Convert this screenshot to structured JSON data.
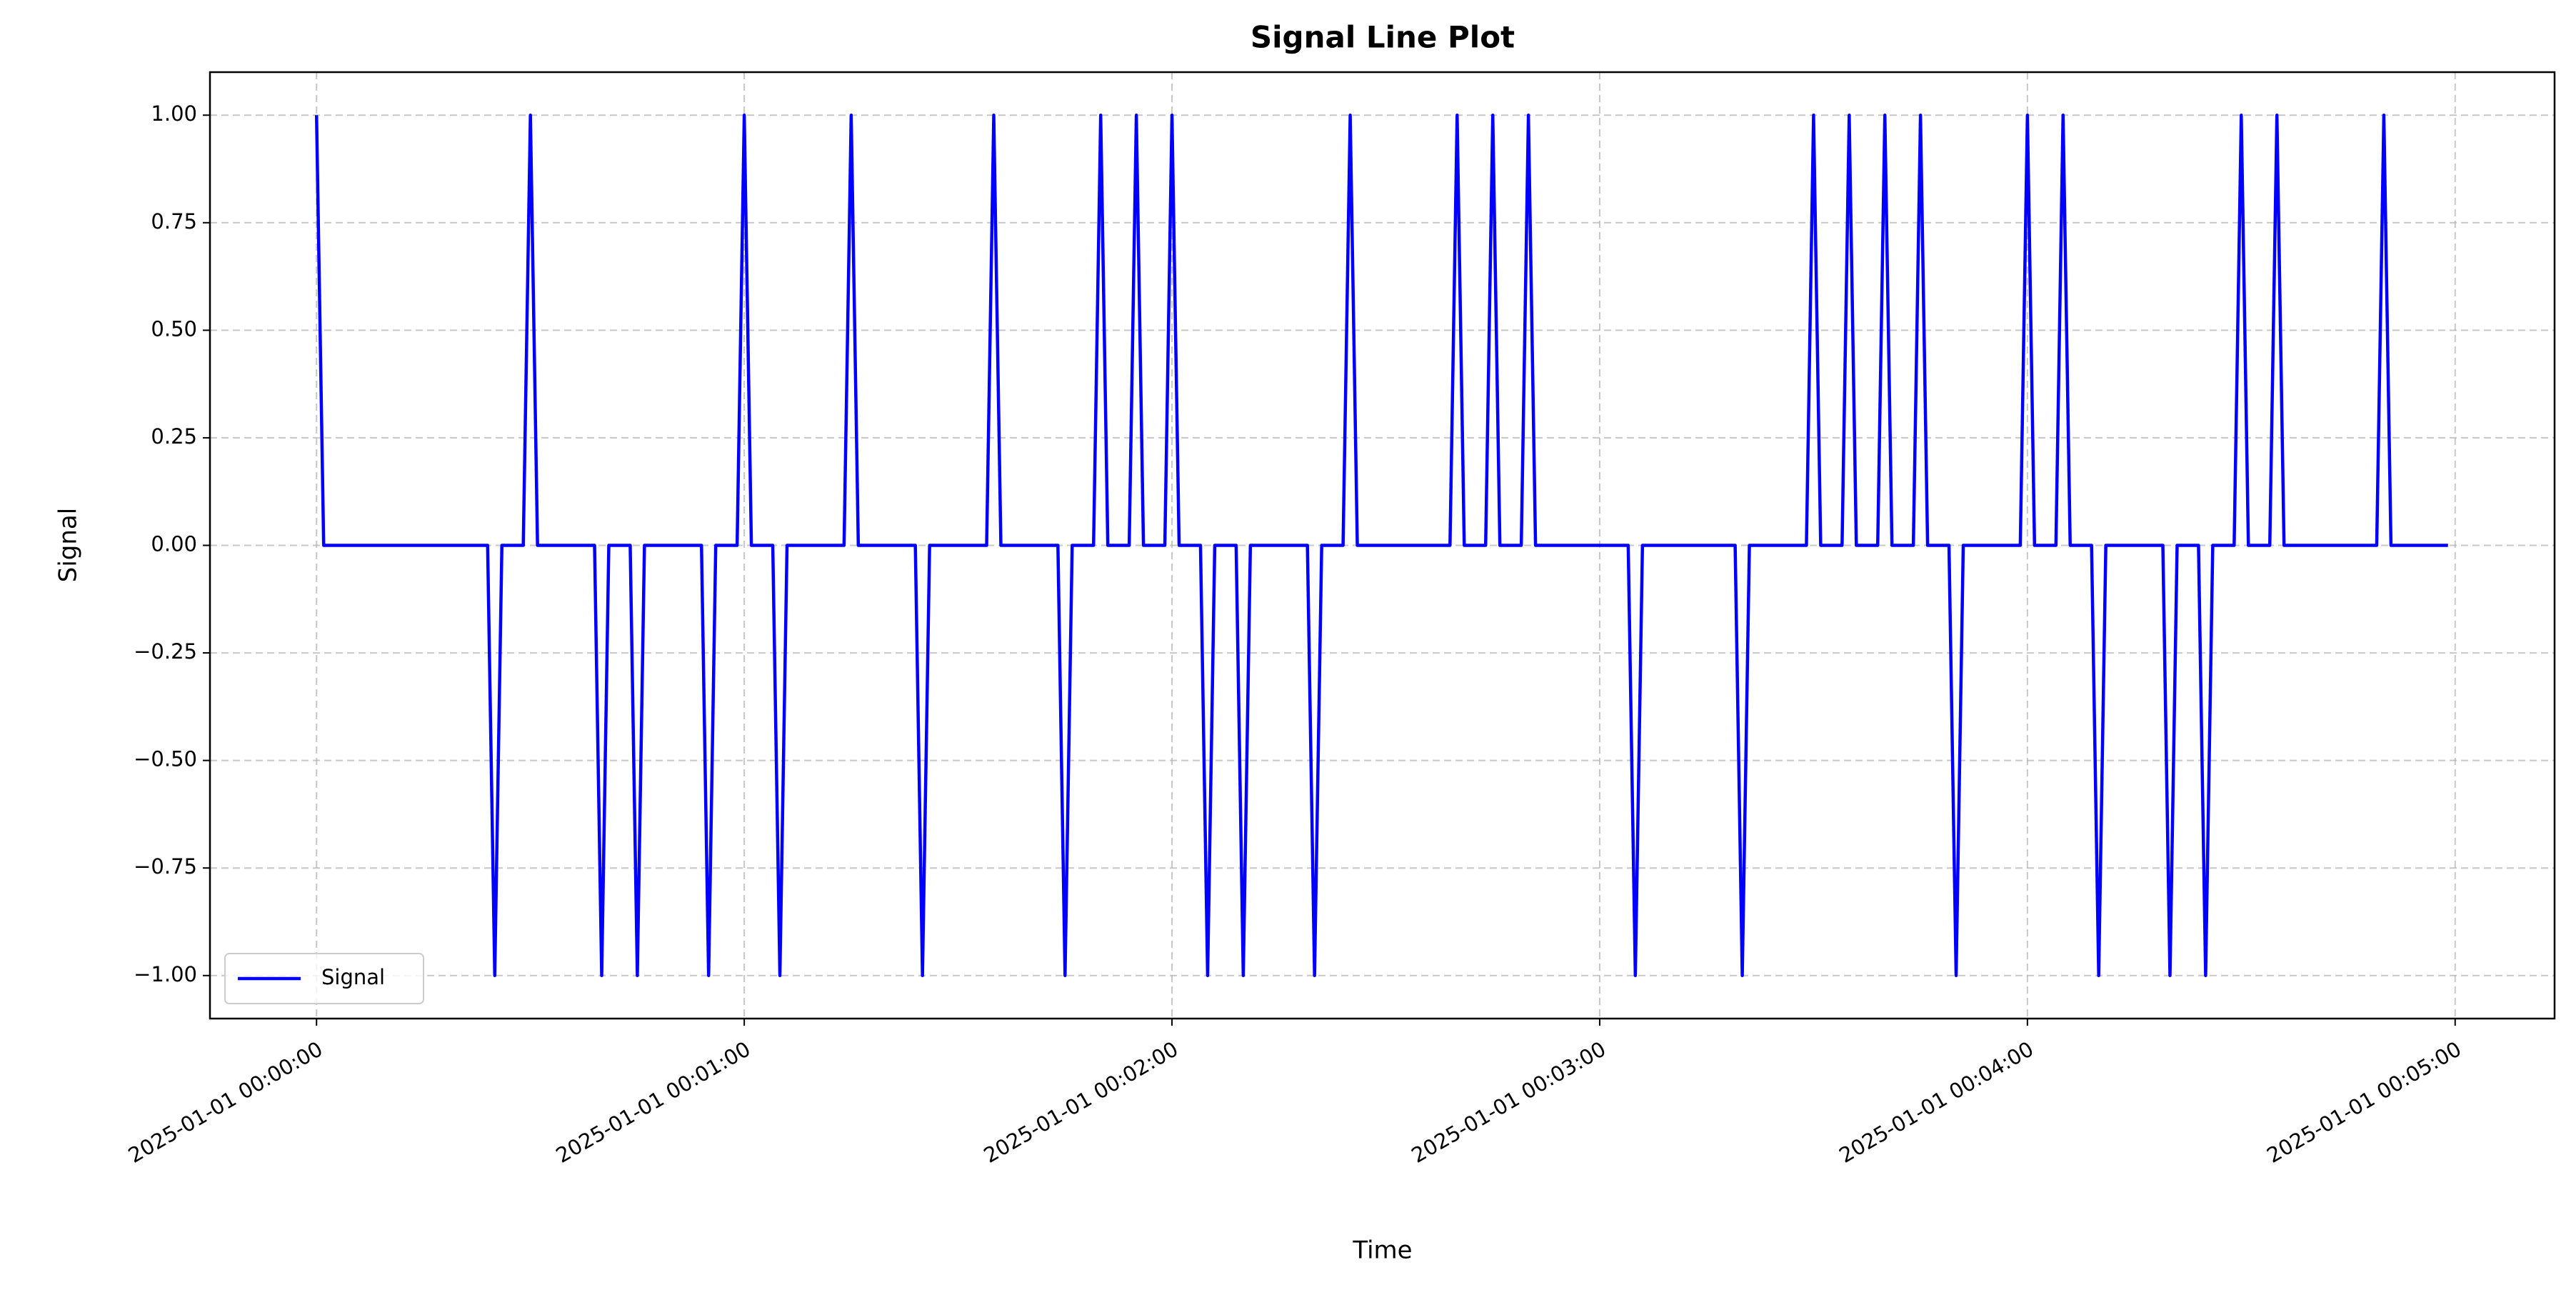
{
  "chart_data": {
    "type": "line",
    "title": "Signal Line Plot",
    "x_label": "Time",
    "y_label": "Signal",
    "x": [
      "2025-01-01 00:00:00",
      "2025-01-01 00:00:01",
      "2025-01-01 00:00:02",
      "2025-01-01 00:00:03",
      "2025-01-01 00:00:04",
      "2025-01-01 00:00:05",
      "2025-01-01 00:00:06",
      "2025-01-01 00:00:07",
      "2025-01-01 00:00:08",
      "2025-01-01 00:00:09",
      "2025-01-01 00:00:10",
      "2025-01-01 00:00:11",
      "2025-01-01 00:00:12",
      "2025-01-01 00:00:13",
      "2025-01-01 00:00:14",
      "2025-01-01 00:00:15",
      "2025-01-01 00:00:16",
      "2025-01-01 00:00:17",
      "2025-01-01 00:00:18",
      "2025-01-01 00:00:19",
      "2025-01-01 00:00:20",
      "2025-01-01 00:00:21",
      "2025-01-01 00:00:22",
      "2025-01-01 00:00:23",
      "2025-01-01 00:00:24",
      "2025-01-01 00:00:25",
      "2025-01-01 00:00:26",
      "2025-01-01 00:00:27",
      "2025-01-01 00:00:28",
      "2025-01-01 00:00:29",
      "2025-01-01 00:00:30",
      "2025-01-01 00:00:31",
      "2025-01-01 00:00:32",
      "2025-01-01 00:00:33",
      "2025-01-01 00:00:34",
      "2025-01-01 00:00:35",
      "2025-01-01 00:00:36",
      "2025-01-01 00:00:37",
      "2025-01-01 00:00:38",
      "2025-01-01 00:00:39",
      "2025-01-01 00:00:40",
      "2025-01-01 00:00:41",
      "2025-01-01 00:00:42",
      "2025-01-01 00:00:43",
      "2025-01-01 00:00:44",
      "2025-01-01 00:00:45",
      "2025-01-01 00:00:46",
      "2025-01-01 00:00:47",
      "2025-01-01 00:00:48",
      "2025-01-01 00:00:49",
      "2025-01-01 00:00:50",
      "2025-01-01 00:00:51",
      "2025-01-01 00:00:52",
      "2025-01-01 00:00:53",
      "2025-01-01 00:00:54",
      "2025-01-01 00:00:55",
      "2025-01-01 00:00:56",
      "2025-01-01 00:00:57",
      "2025-01-01 00:00:58",
      "2025-01-01 00:00:59",
      "2025-01-01 00:01:00",
      "2025-01-01 00:01:01",
      "2025-01-01 00:01:02",
      "2025-01-01 00:01:03",
      "2025-01-01 00:01:04",
      "2025-01-01 00:01:05",
      "2025-01-01 00:01:06",
      "2025-01-01 00:01:07",
      "2025-01-01 00:01:08",
      "2025-01-01 00:01:09",
      "2025-01-01 00:01:10",
      "2025-01-01 00:01:11",
      "2025-01-01 00:01:12",
      "2025-01-01 00:01:13",
      "2025-01-01 00:01:14",
      "2025-01-01 00:01:15",
      "2025-01-01 00:01:16",
      "2025-01-01 00:01:17",
      "2025-01-01 00:01:18",
      "2025-01-01 00:01:19",
      "2025-01-01 00:01:20",
      "2025-01-01 00:01:21",
      "2025-01-01 00:01:22",
      "2025-01-01 00:01:23",
      "2025-01-01 00:01:24",
      "2025-01-01 00:01:25",
      "2025-01-01 00:01:26",
      "2025-01-01 00:01:27",
      "2025-01-01 00:01:28",
      "2025-01-01 00:01:29",
      "2025-01-01 00:01:30",
      "2025-01-01 00:01:31",
      "2025-01-01 00:01:32",
      "2025-01-01 00:01:33",
      "2025-01-01 00:01:34",
      "2025-01-01 00:01:35",
      "2025-01-01 00:01:36",
      "2025-01-01 00:01:37",
      "2025-01-01 00:01:38",
      "2025-01-01 00:01:39",
      "2025-01-01 00:01:40",
      "2025-01-01 00:01:41",
      "2025-01-01 00:01:42",
      "2025-01-01 00:01:43",
      "2025-01-01 00:01:44",
      "2025-01-01 00:01:45",
      "2025-01-01 00:01:46",
      "2025-01-01 00:01:47",
      "2025-01-01 00:01:48",
      "2025-01-01 00:01:49",
      "2025-01-01 00:01:50",
      "2025-01-01 00:01:51",
      "2025-01-01 00:01:52",
      "2025-01-01 00:01:53",
      "2025-01-01 00:01:54",
      "2025-01-01 00:01:55",
      "2025-01-01 00:01:56",
      "2025-01-01 00:01:57",
      "2025-01-01 00:01:58",
      "2025-01-01 00:01:59",
      "2025-01-01 00:02:00",
      "2025-01-01 00:02:01",
      "2025-01-01 00:02:02",
      "2025-01-01 00:02:03",
      "2025-01-01 00:02:04",
      "2025-01-01 00:02:05",
      "2025-01-01 00:02:06",
      "2025-01-01 00:02:07",
      "2025-01-01 00:02:08",
      "2025-01-01 00:02:09",
      "2025-01-01 00:02:10",
      "2025-01-01 00:02:11",
      "2025-01-01 00:02:12",
      "2025-01-01 00:02:13",
      "2025-01-01 00:02:14",
      "2025-01-01 00:02:15",
      "2025-01-01 00:02:16",
      "2025-01-01 00:02:17",
      "2025-01-01 00:02:18",
      "2025-01-01 00:02:19",
      "2025-01-01 00:02:20",
      "2025-01-01 00:02:21",
      "2025-01-01 00:02:22",
      "2025-01-01 00:02:23",
      "2025-01-01 00:02:24",
      "2025-01-01 00:02:25",
      "2025-01-01 00:02:26",
      "2025-01-01 00:02:27",
      "2025-01-01 00:02:28",
      "2025-01-01 00:02:29",
      "2025-01-01 00:02:30",
      "2025-01-01 00:02:31",
      "2025-01-01 00:02:32",
      "2025-01-01 00:02:33",
      "2025-01-01 00:02:34",
      "2025-01-01 00:02:35",
      "2025-01-01 00:02:36",
      "2025-01-01 00:02:37",
      "2025-01-01 00:02:38",
      "2025-01-01 00:02:39",
      "2025-01-01 00:02:40",
      "2025-01-01 00:02:41",
      "2025-01-01 00:02:42",
      "2025-01-01 00:02:43",
      "2025-01-01 00:02:44",
      "2025-01-01 00:02:45",
      "2025-01-01 00:02:46",
      "2025-01-01 00:02:47",
      "2025-01-01 00:02:48",
      "2025-01-01 00:02:49",
      "2025-01-01 00:02:50",
      "2025-01-01 00:02:51",
      "2025-01-01 00:02:52",
      "2025-01-01 00:02:53",
      "2025-01-01 00:02:54",
      "2025-01-01 00:02:55",
      "2025-01-01 00:02:56",
      "2025-01-01 00:02:57",
      "2025-01-01 00:02:58",
      "2025-01-01 00:02:59",
      "2025-01-01 00:03:00",
      "2025-01-01 00:03:01",
      "2025-01-01 00:03:02",
      "2025-01-01 00:03:03",
      "2025-01-01 00:03:04",
      "2025-01-01 00:03:05",
      "2025-01-01 00:03:06",
      "2025-01-01 00:03:07",
      "2025-01-01 00:03:08",
      "2025-01-01 00:03:09",
      "2025-01-01 00:03:10",
      "2025-01-01 00:03:11",
      "2025-01-01 00:03:12",
      "2025-01-01 00:03:13",
      "2025-01-01 00:03:14",
      "2025-01-01 00:03:15",
      "2025-01-01 00:03:16",
      "2025-01-01 00:03:17",
      "2025-01-01 00:03:18",
      "2025-01-01 00:03:19",
      "2025-01-01 00:03:20",
      "2025-01-01 00:03:21",
      "2025-01-01 00:03:22",
      "2025-01-01 00:03:23",
      "2025-01-01 00:03:24",
      "2025-01-01 00:03:25",
      "2025-01-01 00:03:26",
      "2025-01-01 00:03:27",
      "2025-01-01 00:03:28",
      "2025-01-01 00:03:29",
      "2025-01-01 00:03:30",
      "2025-01-01 00:03:31",
      "2025-01-01 00:03:32",
      "2025-01-01 00:03:33",
      "2025-01-01 00:03:34",
      "2025-01-01 00:03:35",
      "2025-01-01 00:03:36",
      "2025-01-01 00:03:37",
      "2025-01-01 00:03:38",
      "2025-01-01 00:03:39",
      "2025-01-01 00:03:40",
      "2025-01-01 00:03:41",
      "2025-01-01 00:03:42",
      "2025-01-01 00:03:43",
      "2025-01-01 00:03:44",
      "2025-01-01 00:03:45",
      "2025-01-01 00:03:46",
      "2025-01-01 00:03:47",
      "2025-01-01 00:03:48",
      "2025-01-01 00:03:49",
      "2025-01-01 00:03:50",
      "2025-01-01 00:03:51",
      "2025-01-01 00:03:52",
      "2025-01-01 00:03:53",
      "2025-01-01 00:03:54",
      "2025-01-01 00:03:55",
      "2025-01-01 00:03:56",
      "2025-01-01 00:03:57",
      "2025-01-01 00:03:58",
      "2025-01-01 00:03:59",
      "2025-01-01 00:04:00",
      "2025-01-01 00:04:01",
      "2025-01-01 00:04:02",
      "2025-01-01 00:04:03",
      "2025-01-01 00:04:04",
      "2025-01-01 00:04:05",
      "2025-01-01 00:04:06",
      "2025-01-01 00:04:07",
      "2025-01-01 00:04:08",
      "2025-01-01 00:04:09",
      "2025-01-01 00:04:10",
      "2025-01-01 00:04:11",
      "2025-01-01 00:04:12",
      "2025-01-01 00:04:13",
      "2025-01-01 00:04:14",
      "2025-01-01 00:04:15",
      "2025-01-01 00:04:16",
      "2025-01-01 00:04:17",
      "2025-01-01 00:04:18",
      "2025-01-01 00:04:19",
      "2025-01-01 00:04:20",
      "2025-01-01 00:04:21",
      "2025-01-01 00:04:22",
      "2025-01-01 00:04:23",
      "2025-01-01 00:04:24",
      "2025-01-01 00:04:25",
      "2025-01-01 00:04:26",
      "2025-01-01 00:04:27",
      "2025-01-01 00:04:28",
      "2025-01-01 00:04:29",
      "2025-01-01 00:04:30",
      "2025-01-01 00:04:31",
      "2025-01-01 00:04:32",
      "2025-01-01 00:04:33",
      "2025-01-01 00:04:34",
      "2025-01-01 00:04:35",
      "2025-01-01 00:04:36",
      "2025-01-01 00:04:37",
      "2025-01-01 00:04:38",
      "2025-01-01 00:04:39",
      "2025-01-01 00:04:40",
      "2025-01-01 00:04:41",
      "2025-01-01 00:04:42",
      "2025-01-01 00:04:43",
      "2025-01-01 00:04:44",
      "2025-01-01 00:04:45",
      "2025-01-01 00:04:46",
      "2025-01-01 00:04:47",
      "2025-01-01 00:04:48",
      "2025-01-01 00:04:49",
      "2025-01-01 00:04:50",
      "2025-01-01 00:04:51",
      "2025-01-01 00:04:52",
      "2025-01-01 00:04:53",
      "2025-01-01 00:04:54",
      "2025-01-01 00:04:55",
      "2025-01-01 00:04:56",
      "2025-01-01 00:04:57",
      "2025-01-01 00:04:58",
      "2025-01-01 00:04:59"
    ],
    "series": [
      {
        "name": "Signal",
        "color": "#0000ff",
        "values": [
          1,
          0,
          0,
          0,
          0,
          0,
          0,
          0,
          0,
          0,
          0,
          0,
          0,
          0,
          0,
          0,
          0,
          0,
          0,
          0,
          0,
          0,
          0,
          0,
          0,
          -1,
          0,
          0,
          0,
          0,
          1,
          0,
          0,
          0,
          0,
          0,
          0,
          0,
          0,
          0,
          -1,
          0,
          0,
          0,
          0,
          -1,
          0,
          0,
          0,
          0,
          0,
          0,
          0,
          0,
          0,
          -1,
          0,
          0,
          0,
          0,
          1,
          0,
          0,
          0,
          0,
          -1,
          0,
          0,
          0,
          0,
          0,
          0,
          0,
          0,
          0,
          1,
          0,
          0,
          0,
          0,
          0,
          0,
          0,
          0,
          0,
          -1,
          0,
          0,
          0,
          0,
          0,
          0,
          0,
          0,
          0,
          1,
          0,
          0,
          0,
          0,
          0,
          0,
          0,
          0,
          0,
          -1,
          0,
          0,
          0,
          0,
          1,
          0,
          0,
          0,
          0,
          1,
          0,
          0,
          0,
          0,
          1,
          0,
          0,
          0,
          0,
          -1,
          0,
          0,
          0,
          0,
          -1,
          0,
          0,
          0,
          0,
          0,
          0,
          0,
          0,
          0,
          -1,
          0,
          0,
          0,
          0,
          1,
          0,
          0,
          0,
          0,
          0,
          0,
          0,
          0,
          0,
          0,
          0,
          0,
          0,
          0,
          1,
          0,
          0,
          0,
          0,
          1,
          0,
          0,
          0,
          0,
          1,
          0,
          0,
          0,
          0,
          0,
          0,
          0,
          0,
          0,
          0,
          0,
          0,
          0,
          0,
          -1,
          0,
          0,
          0,
          0,
          0,
          0,
          0,
          0,
          0,
          0,
          0,
          0,
          0,
          0,
          -1,
          0,
          0,
          0,
          0,
          0,
          0,
          0,
          0,
          0,
          1,
          0,
          0,
          0,
          0,
          1,
          0,
          0,
          0,
          0,
          1,
          0,
          0,
          0,
          0,
          1,
          0,
          0,
          0,
          0,
          -1,
          0,
          0,
          0,
          0,
          0,
          0,
          0,
          0,
          0,
          1,
          0,
          0,
          0,
          0,
          1,
          0,
          0,
          0,
          0,
          -1,
          0,
          0,
          0,
          0,
          0,
          0,
          0,
          0,
          0,
          -1,
          0,
          0,
          0,
          0,
          -1,
          0,
          0,
          0,
          0,
          1,
          0,
          0,
          0,
          0,
          1,
          0,
          0,
          0,
          0,
          0,
          0,
          0,
          0,
          0,
          0,
          0,
          0,
          0,
          0,
          1,
          0,
          0,
          0,
          0,
          0,
          0,
          0,
          0,
          0
        ]
      }
    ],
    "xlim": [
      "2024-12-31 23:59:45.05",
      "2025-01-01 00:05:13.95"
    ],
    "xticks": [
      "2025-01-01 00:00:00",
      "2025-01-01 00:01:00",
      "2025-01-01 00:02:00",
      "2025-01-01 00:03:00",
      "2025-01-01 00:04:00",
      "2025-01-01 00:05:00"
    ],
    "ylim": [
      -1.1,
      1.1
    ],
    "yticks": [
      {
        "value": -1,
        "label": "−1.00"
      },
      {
        "value": -0.75,
        "label": "−0.75"
      },
      {
        "value": -0.5,
        "label": "−0.50"
      },
      {
        "value": -0.25,
        "label": "−0.25"
      },
      {
        "value": 0,
        "label": "0.00"
      },
      {
        "value": 0.25,
        "label": "0.25"
      },
      {
        "value": 0.5,
        "label": "0.50"
      },
      {
        "value": 0.75,
        "label": "0.75"
      },
      {
        "value": 1,
        "label": "1.00"
      }
    ],
    "grid": true,
    "legend": "lower left"
  }
}
